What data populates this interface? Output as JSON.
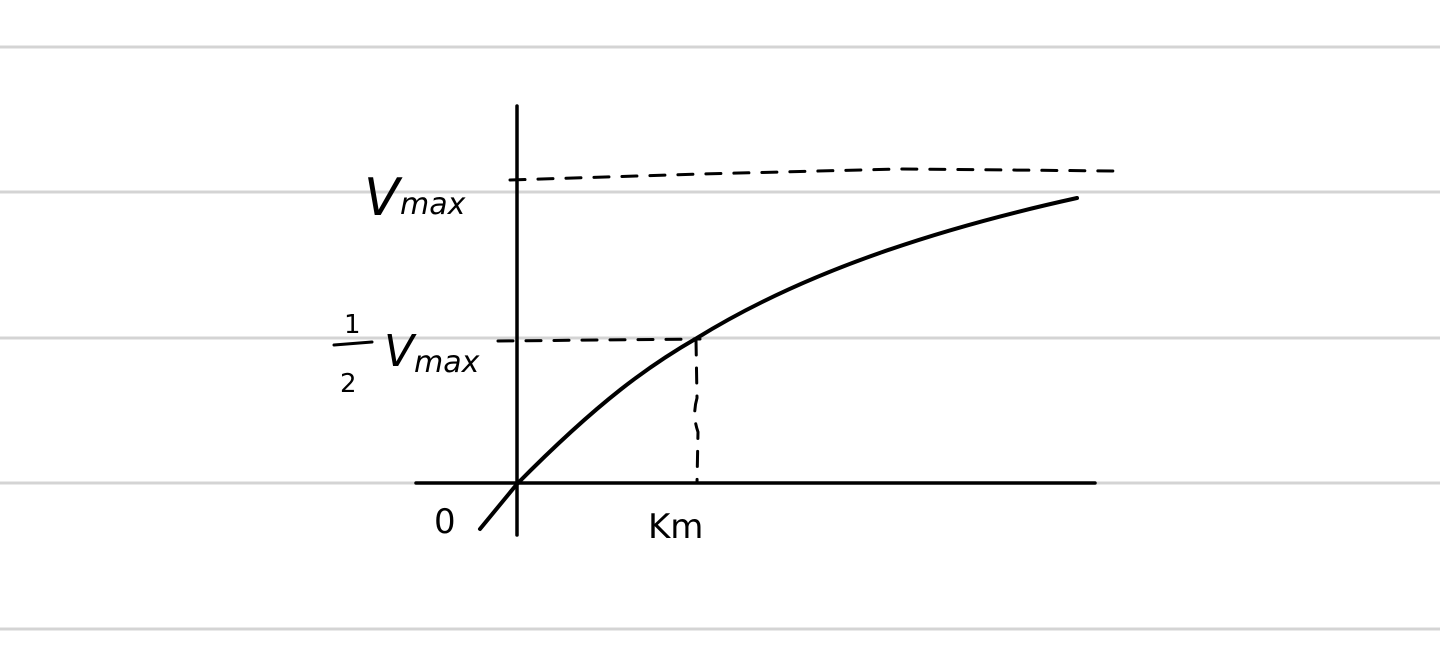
{
  "labels": {
    "vmax_v": "V",
    "vmax_sub": "max",
    "half_num": "1",
    "half_den": "2",
    "half_v": "V",
    "half_sub": "max",
    "origin": "0",
    "km": "Km"
  },
  "colors": {
    "ink": "#000000",
    "ruled_lines": "#d4d4d4",
    "paper": "#ffffff"
  }
}
